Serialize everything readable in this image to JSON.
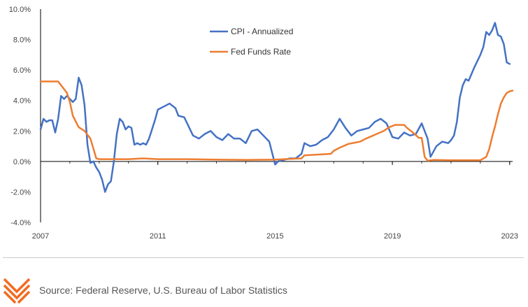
{
  "chart_data": {
    "type": "line",
    "title": "",
    "xlabel": "",
    "ylabel": "",
    "xlim": [
      2007.0,
      2023.1
    ],
    "ylim": [
      -4.0,
      10.0
    ],
    "x_ticks": [
      2007,
      2011,
      2015,
      2019,
      2023
    ],
    "x_tick_labels": [
      "2007",
      "2011",
      "2015",
      "2019",
      "2023"
    ],
    "y_ticks": [
      -4,
      -2,
      0,
      2,
      4,
      6,
      8,
      10
    ],
    "y_tick_labels": [
      "-4.0%",
      "-2.0%",
      "0.0%",
      "2.0%",
      "4.0%",
      "6.0%",
      "8.0%",
      "10.0%"
    ],
    "legend_position": "top-center",
    "series": [
      {
        "name": "CPI - Annualized",
        "color": "#4472c4",
        "x": [
          2007.0,
          2007.1,
          2007.2,
          2007.3,
          2007.4,
          2007.5,
          2007.6,
          2007.7,
          2007.8,
          2007.9,
          2008.0,
          2008.1,
          2008.2,
          2008.3,
          2008.4,
          2008.5,
          2008.6,
          2008.7,
          2008.8,
          2008.9,
          2009.0,
          2009.1,
          2009.2,
          2009.3,
          2009.4,
          2009.5,
          2009.6,
          2009.7,
          2009.8,
          2009.9,
          2010.0,
          2010.1,
          2010.2,
          2010.3,
          2010.4,
          2010.5,
          2010.6,
          2010.7,
          2010.8,
          2010.9,
          2011.0,
          2011.2,
          2011.4,
          2011.6,
          2011.7,
          2011.9,
          2012.0,
          2012.2,
          2012.4,
          2012.6,
          2012.8,
          2013.0,
          2013.2,
          2013.4,
          2013.6,
          2013.8,
          2014.0,
          2014.2,
          2014.4,
          2014.6,
          2014.8,
          2015.0,
          2015.1,
          2015.3,
          2015.5,
          2015.7,
          2015.9,
          2016.0,
          2016.2,
          2016.4,
          2016.6,
          2016.8,
          2017.0,
          2017.2,
          2017.4,
          2017.6,
          2017.8,
          2018.0,
          2018.2,
          2018.4,
          2018.6,
          2018.8,
          2019.0,
          2019.2,
          2019.4,
          2019.6,
          2019.8,
          2020.0,
          2020.2,
          2020.3,
          2020.5,
          2020.7,
          2020.9,
          2021.0,
          2021.1,
          2021.2,
          2021.3,
          2021.4,
          2021.5,
          2021.6,
          2021.8,
          2022.0,
          2022.1,
          2022.2,
          2022.3,
          2022.4,
          2022.5,
          2022.6,
          2022.7,
          2022.8,
          2022.9,
          2023.0
        ],
        "values": [
          2.1,
          2.8,
          2.6,
          2.7,
          2.7,
          1.9,
          2.8,
          4.3,
          4.1,
          4.3,
          4.1,
          3.9,
          4.1,
          5.5,
          5.0,
          3.7,
          1.1,
          -0.1,
          0.0,
          -0.4,
          -0.7,
          -1.2,
          -2.0,
          -1.5,
          -1.3,
          0.0,
          1.8,
          2.8,
          2.6,
          2.1,
          2.3,
          2.2,
          1.1,
          1.2,
          1.1,
          1.2,
          1.1,
          1.5,
          2.1,
          2.7,
          3.4,
          3.6,
          3.8,
          3.5,
          3.0,
          2.9,
          2.5,
          1.7,
          1.5,
          1.8,
          2.0,
          1.6,
          1.4,
          1.8,
          1.5,
          1.5,
          1.2,
          2.0,
          2.1,
          1.7,
          1.3,
          -0.2,
          0.0,
          0.1,
          0.2,
          0.2,
          0.5,
          1.2,
          1.0,
          1.1,
          1.4,
          1.6,
          2.1,
          2.8,
          2.2,
          1.7,
          2.0,
          2.1,
          2.2,
          2.6,
          2.8,
          2.5,
          1.6,
          1.5,
          1.9,
          1.7,
          1.8,
          2.5,
          1.5,
          0.3,
          1.0,
          1.3,
          1.2,
          1.4,
          1.7,
          2.6,
          4.2,
          5.0,
          5.4,
          5.3,
          6.2,
          7.0,
          7.5,
          8.5,
          8.3,
          8.6,
          9.1,
          8.3,
          8.2,
          7.7,
          6.5,
          6.4
        ],
        "style": "lines"
      },
      {
        "name": "Fed Funds Rate",
        "color": "#ed7d31",
        "x": [
          2007.0,
          2007.6,
          2007.7,
          2007.8,
          2007.9,
          2008.0,
          2008.1,
          2008.3,
          2008.5,
          2008.7,
          2008.9,
          2009.0,
          2010.0,
          2010.5,
          2011.0,
          2012.0,
          2013.0,
          2014.0,
          2015.0,
          2015.9,
          2016.0,
          2016.9,
          2017.0,
          2017.2,
          2017.5,
          2017.9,
          2018.1,
          2018.4,
          2018.7,
          2018.9,
          2019.1,
          2019.4,
          2019.5,
          2019.7,
          2019.9,
          2020.0,
          2020.1,
          2020.2,
          2020.4,
          2021.0,
          2021.5,
          2022.0,
          2022.2,
          2022.3,
          2022.4,
          2022.5,
          2022.6,
          2022.7,
          2022.8,
          2022.9,
          2023.0,
          2023.1
        ],
        "values": [
          5.25,
          5.25,
          5.0,
          4.75,
          4.5,
          3.9,
          3.0,
          2.25,
          2.0,
          1.5,
          0.2,
          0.15,
          0.15,
          0.2,
          0.15,
          0.15,
          0.12,
          0.1,
          0.12,
          0.2,
          0.4,
          0.5,
          0.7,
          0.9,
          1.15,
          1.3,
          1.5,
          1.75,
          2.0,
          2.25,
          2.4,
          2.4,
          2.2,
          1.9,
          1.55,
          1.55,
          0.3,
          0.05,
          0.1,
          0.08,
          0.08,
          0.08,
          0.3,
          0.8,
          1.6,
          2.3,
          3.1,
          3.8,
          4.2,
          4.5,
          4.6,
          4.65
        ],
        "style": "lines"
      }
    ]
  },
  "footer": {
    "source_text": "Source: Federal Reserve, U.S. Bureau of Labor Statistics"
  },
  "logo": {
    "name": "chevron-logo-icon",
    "color": "#f26b21"
  },
  "colors": {
    "axis": "#000000",
    "grid": "#cccccc",
    "divider": "#cccccc"
  }
}
